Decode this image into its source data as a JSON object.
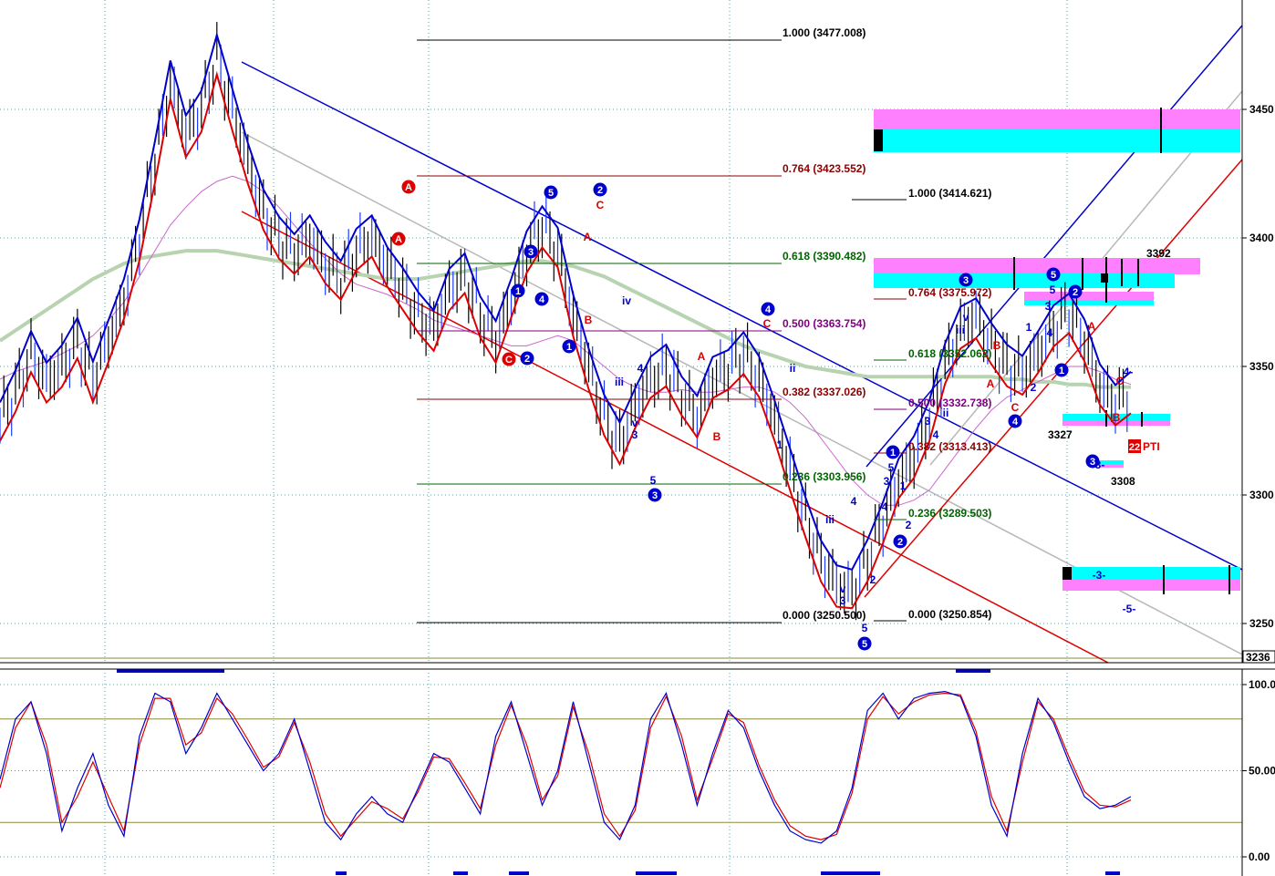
{
  "chart_data": [
    {
      "type": "line",
      "price_axis": {
        "ticks": [
          3450,
          3400,
          3350,
          3300,
          3250
        ],
        "tick_labels": [
          "3450",
          "3400",
          "3350",
          "3300",
          "3250"
        ],
        "bottom_label": "3236"
      },
      "series": [
        {
          "values": [
            3330,
            3340,
            3355,
            3345,
            3350,
            3360,
            3345,
            3360,
            3375,
            3400,
            3430,
            3460,
            3440,
            3450,
            3470,
            3450,
            3430,
            3410,
            3400,
            3395,
            3400,
            3390,
            3385,
            3395,
            3400,
            3390,
            3380,
            3370,
            3365,
            3380,
            3385,
            3370,
            3360,
            3375,
            3395,
            3405,
            3395,
            3370,
            3350,
            3330,
            3320,
            3335,
            3345,
            3350,
            3340,
            3330,
            3345,
            3350,
            3355,
            3345,
            3330,
            3310,
            3290,
            3275,
            3265,
            3262,
            3275,
            3290,
            3305,
            3315,
            3330,
            3350,
            3365,
            3370,
            3358,
            3350,
            3348,
            3355,
            3365,
            3372,
            3360,
            3342,
            3336,
            3340
          ]
        },
        {
          "values": [
            3345,
            3348,
            3350,
            3352,
            3355,
            3358,
            3362,
            3368,
            3375,
            3385,
            3395,
            3405,
            3412,
            3418,
            3422,
            3424,
            3422,
            3418,
            3412,
            3405,
            3398,
            3392,
            3386,
            3382,
            3380,
            3378,
            3375,
            3372,
            3368,
            3366,
            3364,
            3362,
            3360,
            3358,
            3358,
            3360,
            3362,
            3360,
            3355,
            3350,
            3345,
            3342,
            3340,
            3340,
            3341,
            3340,
            3340,
            3341,
            3342,
            3342,
            3340,
            3336,
            3330,
            3322,
            3314,
            3306,
            3300,
            3296,
            3296,
            3298,
            3302,
            3310,
            3318,
            3326,
            3333,
            3338,
            3341,
            3344,
            3347,
            3350,
            3350,
            3348,
            3345,
            3343
          ]
        },
        {
          "values": [
            3360,
            3364,
            3368,
            3372,
            3376,
            3380,
            3384,
            3387,
            3390,
            3392,
            3393,
            3394,
            3395,
            3395,
            3395,
            3394,
            3393,
            3392,
            3391,
            3390,
            3389,
            3388,
            3387,
            3386,
            3385,
            3384,
            3384,
            3384,
            3385,
            3386,
            3387,
            3388,
            3389,
            3390,
            3391,
            3391,
            3390,
            3389,
            3387,
            3385,
            3382,
            3379,
            3376,
            3373,
            3370,
            3367,
            3364,
            3361,
            3358,
            3356,
            3354,
            3352,
            3350,
            3349,
            3348,
            3347,
            3346,
            3346,
            3346,
            3346,
            3346,
            3346,
            3346,
            3346,
            3346,
            3345,
            3345,
            3344,
            3344,
            3343,
            3343,
            3342,
            3342,
            3342
          ]
        }
      ],
      "fib_left": [
        {
          "label": "1.000 (3477.008)",
          "color": "#000000"
        },
        {
          "label": "0.764 (3423.552)",
          "color": "#8b0000"
        },
        {
          "label": "0.618 (3390.482)",
          "color": "#006400"
        },
        {
          "label": "0.500 (3363.754)",
          "color": "#800080"
        },
        {
          "label": "0.382 (3337.026)",
          "color": "#8b0000"
        },
        {
          "label": "0.236 (3303.956)",
          "color": "#006400"
        },
        {
          "label": "0.000 (3250.500)",
          "color": "#000000"
        }
      ],
      "fib_right": [
        {
          "label": "1.000 (3414.621)",
          "color": "#000000"
        },
        {
          "label": "0.764 (3375.972)",
          "color": "#8b0000"
        },
        {
          "label": "0.618 (3352.062)",
          "color": "#006400"
        },
        {
          "label": "0.500 (3332.738)",
          "color": "#800080"
        },
        {
          "label": "0.382 (3313.413)",
          "color": "#8b0000"
        },
        {
          "label": "0.236 (3289.503)",
          "color": "#006400"
        },
        {
          "label": "0.000 (3250.854)",
          "color": "#000000"
        }
      ],
      "price_annotations": [
        "3392",
        "3327",
        "3308"
      ],
      "wave_labels": [
        "A",
        "B",
        "C",
        "1",
        "2",
        "3",
        "4",
        "5",
        "i",
        "ii",
        "iii",
        "iv",
        "v",
        "-3-",
        "-5-",
        "4-",
        "22",
        "PTI"
      ],
      "colors": {
        "blue": "#0000cc",
        "red": "#dd0000",
        "grey": "#b8b8b8",
        "sage": "#b7d3b0",
        "magenta_line": "#cc66cc",
        "zone_magenta": "#ff80ff",
        "zone_cyan": "#00ffff"
      }
    },
    {
      "type": "line",
      "ticks": [
        100,
        50,
        0
      ],
      "tick_labels": [
        "100.0",
        "50.00",
        "0.00"
      ],
      "ylim": [
        0,
        100
      ],
      "series": [
        {
          "values": [
            45,
            80,
            90,
            60,
            15,
            40,
            60,
            30,
            12,
            70,
            95,
            90,
            60,
            75,
            95,
            80,
            65,
            50,
            60,
            80,
            50,
            20,
            10,
            25,
            35,
            25,
            20,
            40,
            60,
            55,
            40,
            25,
            70,
            90,
            60,
            30,
            50,
            90,
            55,
            20,
            10,
            30,
            80,
            95,
            65,
            30,
            60,
            85,
            75,
            50,
            30,
            15,
            10,
            8,
            15,
            40,
            85,
            95,
            80,
            92,
            95,
            96,
            93,
            70,
            30,
            12,
            60,
            92,
            78,
            55,
            35,
            28,
            30,
            35
          ]
        },
        {
          "values": [
            40,
            75,
            90,
            65,
            20,
            35,
            55,
            35,
            15,
            65,
            92,
            92,
            65,
            72,
            92,
            83,
            68,
            52,
            58,
            78,
            55,
            25,
            12,
            22,
            32,
            28,
            22,
            38,
            58,
            57,
            43,
            28,
            65,
            88,
            65,
            33,
            47,
            87,
            60,
            25,
            12,
            27,
            75,
            93,
            70,
            33,
            57,
            83,
            78,
            53,
            33,
            18,
            12,
            10,
            13,
            37,
            80,
            93,
            83,
            90,
            94,
            95,
            94,
            73,
            35,
            15,
            55,
            90,
            80,
            58,
            38,
            30,
            29,
            33
          ]
        }
      ]
    }
  ]
}
